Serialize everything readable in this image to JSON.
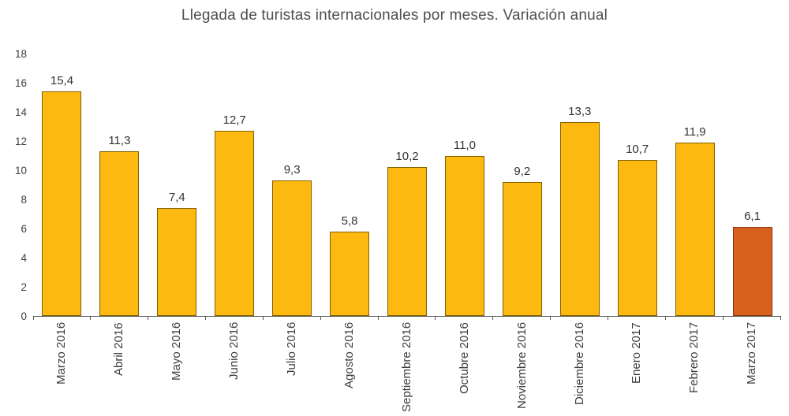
{
  "title": "Llegada de turistas internacionales por meses. Variación anual",
  "chart_data": {
    "type": "bar",
    "title": "Llegada de turistas internacionales por meses. Variación anual",
    "categories": [
      "Marzo 2016",
      "Abril 2016",
      "Mayo 2016",
      "Junio 2016",
      "Julio 2016",
      "Agosto 2016",
      "Septiembre 2016",
      "Octubre 2016",
      "Noviembre 2016",
      "Diciembre 2016",
      "Enero 2017",
      "Febrero 2017",
      "Marzo 2017"
    ],
    "values": [
      15.4,
      11.3,
      7.4,
      12.7,
      9.3,
      5.8,
      10.2,
      11.0,
      9.2,
      13.3,
      10.7,
      11.9,
      6.1
    ],
    "value_labels": [
      "15,4",
      "11,3",
      "7,4",
      "12,7",
      "9,3",
      "5,8",
      "10,2",
      "11,0",
      "9,2",
      "13,3",
      "10,7",
      "11,9",
      "6,1"
    ],
    "xlabel": "",
    "ylabel": "",
    "ylim": [
      0,
      18
    ],
    "ytick_step": 2,
    "ytick_labels": [
      "0",
      "2",
      "4",
      "6",
      "8",
      "10",
      "12",
      "14",
      "16",
      "18"
    ],
    "grid": false,
    "legend_position": "none",
    "bar_color_default": "#FDB90F",
    "bar_border_default": "#7F6000",
    "bar_color_highlight": "#D9611E",
    "bar_border_highlight": "#7D3910",
    "highlight_index": 12,
    "axis_color": "#595959",
    "label_color": "#3d3d3d"
  }
}
